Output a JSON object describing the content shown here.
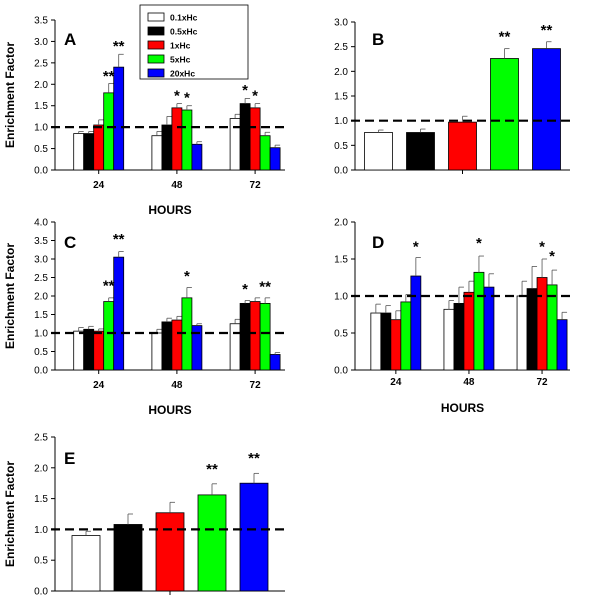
{
  "y_axis_label": "Enrichment Factor",
  "legend": [
    {
      "label": "0.1xHc",
      "color": "#ffffff"
    },
    {
      "label": "0.5xHc",
      "color": "#000000"
    },
    {
      "label": "1xHc",
      "color": "#ff0000"
    },
    {
      "label": "5xHc",
      "color": "#00ff00"
    },
    {
      "label": "20xHc",
      "color": "#0000ff"
    }
  ],
  "chart_data": [
    {
      "panel": "A",
      "type": "bar",
      "xlabel": "HOURS",
      "ylabel": "Enrichment Factor",
      "categories": [
        "24",
        "48",
        "72"
      ],
      "ylim": [
        0,
        3.5
      ],
      "yticks": [
        "0.0",
        "0.5",
        "1.0",
        "1.5",
        "2.0",
        "2.5",
        "3.0",
        "3.5"
      ],
      "reference_line": 1.0,
      "series": [
        {
          "name": "0.1xHc",
          "color": "#ffffff",
          "values": [
            0.85,
            0.8,
            1.2
          ],
          "errors": [
            0.05,
            0.1,
            0.1
          ]
        },
        {
          "name": "0.5xHc",
          "color": "#000000",
          "values": [
            0.85,
            1.05,
            1.55
          ],
          "errors": [
            0.05,
            0.2,
            0.12
          ]
        },
        {
          "name": "1xHc",
          "color": "#ff0000",
          "values": [
            1.05,
            1.45,
            1.45
          ],
          "errors": [
            0.12,
            0.1,
            0.1
          ]
        },
        {
          "name": "5xHc",
          "color": "#00ff00",
          "values": [
            1.8,
            1.4,
            0.8
          ],
          "errors": [
            0.22,
            0.1,
            0.08
          ]
        },
        {
          "name": "20xHc",
          "color": "#0000ff",
          "values": [
            2.4,
            0.6,
            0.52
          ],
          "errors": [
            0.3,
            0.06,
            0.06
          ]
        }
      ],
      "annotations": [
        {
          "text": "**",
          "category": 0,
          "series": 3,
          "y": 2.08
        },
        {
          "text": "**",
          "category": 0,
          "series": 4,
          "y": 2.78
        },
        {
          "text": "*",
          "category": 1,
          "series": 2,
          "y": 1.62
        },
        {
          "text": "*",
          "category": 1,
          "series": 3,
          "y": 1.58
        },
        {
          "text": "*",
          "category": 2,
          "series": 1,
          "y": 1.75
        },
        {
          "text": "*",
          "category": 2,
          "series": 2,
          "y": 1.62
        }
      ]
    },
    {
      "panel": "B",
      "type": "bar",
      "xlabel": "",
      "ylabel": "",
      "categories": [
        ""
      ],
      "ylim": [
        0,
        3.0
      ],
      "yticks": [
        "0.0",
        "0.5",
        "1.0",
        "1.5",
        "2.0",
        "2.5",
        "3.0"
      ],
      "reference_line": 1.0,
      "series": [
        {
          "name": "0.1xHc",
          "color": "#ffffff",
          "values": [
            0.76
          ],
          "errors": [
            0.05
          ]
        },
        {
          "name": "0.5xHc",
          "color": "#000000",
          "values": [
            0.76
          ],
          "errors": [
            0.07
          ]
        },
        {
          "name": "1xHc",
          "color": "#ff0000",
          "values": [
            0.97
          ],
          "errors": [
            0.12
          ]
        },
        {
          "name": "5xHc",
          "color": "#00ff00",
          "values": [
            2.26
          ],
          "errors": [
            0.2
          ]
        },
        {
          "name": "20xHc",
          "color": "#0000ff",
          "values": [
            2.46
          ],
          "errors": [
            0.14
          ]
        }
      ],
      "annotations": [
        {
          "text": "**",
          "category": 0,
          "series": 3,
          "y": 2.6
        },
        {
          "text": "**",
          "category": 0,
          "series": 4,
          "y": 2.74
        }
      ]
    },
    {
      "panel": "C",
      "type": "bar",
      "xlabel": "HOURS",
      "ylabel": "Enrichment Factor",
      "categories": [
        "24",
        "48",
        "72"
      ],
      "ylim": [
        0,
        4.0
      ],
      "yticks": [
        "0.0",
        "0.5",
        "1.0",
        "1.5",
        "2.0",
        "2.5",
        "3.0",
        "3.5",
        "4.0"
      ],
      "reference_line": 1.0,
      "series": [
        {
          "name": "0.1xHc",
          "color": "#ffffff",
          "values": [
            1.05,
            1.0,
            1.25
          ],
          "errors": [
            0.1,
            0.1,
            0.12
          ]
        },
        {
          "name": "0.5xHc",
          "color": "#000000",
          "values": [
            1.1,
            1.3,
            1.8
          ],
          "errors": [
            0.08,
            0.1,
            0.08
          ]
        },
        {
          "name": "1xHc",
          "color": "#ff0000",
          "values": [
            1.05,
            1.35,
            1.85
          ],
          "errors": [
            0.06,
            0.1,
            0.1
          ]
        },
        {
          "name": "5xHc",
          "color": "#00ff00",
          "values": [
            1.85,
            1.95,
            1.8
          ],
          "errors": [
            0.1,
            0.28,
            0.15
          ]
        },
        {
          "name": "20xHc",
          "color": "#0000ff",
          "values": [
            3.05,
            1.2,
            0.42
          ],
          "errors": [
            0.15,
            0.05,
            0.05
          ]
        }
      ],
      "annotations": [
        {
          "text": "**",
          "category": 0,
          "series": 3,
          "y": 2.15
        },
        {
          "text": "**",
          "category": 0,
          "series": 4,
          "y": 3.4
        },
        {
          "text": "*",
          "category": 1,
          "series": 3,
          "y": 2.4
        },
        {
          "text": "*",
          "category": 2,
          "series": 1,
          "y": 2.05
        },
        {
          "text": "**",
          "category": 2,
          "series": 3,
          "y": 2.12
        }
      ]
    },
    {
      "panel": "D",
      "type": "bar",
      "xlabel": "HOURS",
      "ylabel": "",
      "categories": [
        "24",
        "48",
        "72"
      ],
      "ylim": [
        0,
        2.0
      ],
      "yticks": [
        "0.0",
        "0.5",
        "1.0",
        "1.5",
        "2.0"
      ],
      "reference_line": 1.0,
      "series": [
        {
          "name": "0.1xHc",
          "color": "#ffffff",
          "values": [
            0.77,
            0.82,
            1.0
          ],
          "errors": [
            0.12,
            0.12,
            0.2
          ]
        },
        {
          "name": "0.5xHc",
          "color": "#000000",
          "values": [
            0.77,
            0.9,
            1.1
          ],
          "errors": [
            0.1,
            0.22,
            0.3
          ]
        },
        {
          "name": "1xHc",
          "color": "#ff0000",
          "values": [
            0.68,
            1.05,
            1.25
          ],
          "errors": [
            0.12,
            0.15,
            0.25
          ]
        },
        {
          "name": "5xHc",
          "color": "#00ff00",
          "values": [
            0.92,
            1.32,
            1.15
          ],
          "errors": [
            0.1,
            0.22,
            0.2
          ]
        },
        {
          "name": "20xHc",
          "color": "#0000ff",
          "values": [
            1.27,
            1.12,
            0.68
          ],
          "errors": [
            0.25,
            0.18,
            0.1
          ]
        }
      ],
      "annotations": [
        {
          "text": "*",
          "category": 0,
          "series": 4,
          "y": 1.6
        },
        {
          "text": "*",
          "category": 1,
          "series": 3,
          "y": 1.65
        },
        {
          "text": "*",
          "category": 2,
          "series": 2,
          "y": 1.6
        },
        {
          "text": "*",
          "category": 2,
          "series": 3,
          "y": 1.47
        }
      ]
    },
    {
      "panel": "E",
      "type": "bar",
      "xlabel": "",
      "ylabel": "Enrichment Factor",
      "categories": [
        ""
      ],
      "ylim": [
        0,
        2.5
      ],
      "yticks": [
        "0.0",
        "0.5",
        "1.0",
        "1.5",
        "2.0",
        "2.5"
      ],
      "reference_line": 1.0,
      "series": [
        {
          "name": "0.1xHc",
          "color": "#ffffff",
          "values": [
            0.9
          ],
          "errors": [
            0.07
          ]
        },
        {
          "name": "0.5xHc",
          "color": "#000000",
          "values": [
            1.08
          ],
          "errors": [
            0.17
          ]
        },
        {
          "name": "1xHc",
          "color": "#ff0000",
          "values": [
            1.27
          ],
          "errors": [
            0.17
          ]
        },
        {
          "name": "5xHc",
          "color": "#00ff00",
          "values": [
            1.56
          ],
          "errors": [
            0.18
          ]
        },
        {
          "name": "20xHc",
          "color": "#0000ff",
          "values": [
            1.75
          ],
          "errors": [
            0.16
          ]
        }
      ],
      "annotations": [
        {
          "text": "**",
          "category": 0,
          "series": 3,
          "y": 1.9
        },
        {
          "text": "**",
          "category": 0,
          "series": 4,
          "y": 2.08
        }
      ]
    }
  ]
}
